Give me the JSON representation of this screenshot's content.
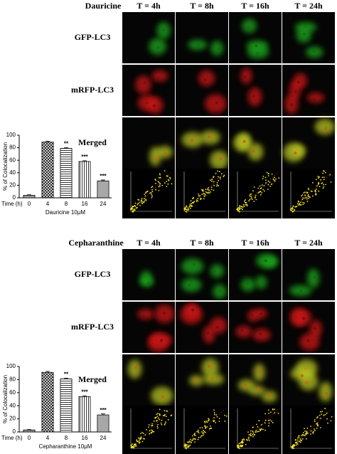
{
  "panels": [
    {
      "compound": "Dauricine",
      "columns": [
        "T = 4h",
        "T = 8h",
        "T = 16h",
        "T = 24h"
      ],
      "rows": [
        "GFP-LC3",
        "mRFP-LC3",
        "Merged"
      ]
    },
    {
      "compound": "Cepharanthine",
      "columns": [
        "T = 4h",
        "T = 8h",
        "T = 16h",
        "T = 24h"
      ],
      "rows": [
        "GFP-LC3",
        "mRFP-LC3",
        "Merged"
      ]
    }
  ],
  "chart_data": [
    {
      "type": "bar",
      "ylabel": "% of Colocalization",
      "xprefix": "Time (h)",
      "xlabel": "Dauricine 10μM",
      "categories": [
        "0",
        "4",
        "8",
        "16",
        "24"
      ],
      "values": [
        4,
        89,
        79,
        58,
        27
      ],
      "errors": [
        0.8,
        1.5,
        1,
        1.2,
        1.5
      ],
      "annotations": [
        null,
        null,
        "**",
        "***",
        "***"
      ],
      "patterns": [
        "solid",
        "crosshatch",
        "hlines",
        "vlines",
        "dots"
      ],
      "ylim": [
        0,
        100
      ],
      "yticks": [
        0,
        20,
        40,
        60,
        80,
        100
      ]
    },
    {
      "type": "bar",
      "ylabel": "% of Colocalization",
      "xprefix": "Time (h)",
      "xlabel": "Cepharanthine 10μM",
      "categories": [
        "0",
        "4",
        "8",
        "16",
        "24"
      ],
      "values": [
        3,
        91,
        81,
        54,
        26
      ],
      "errors": [
        0.6,
        1.5,
        1.2,
        1.2,
        1.5
      ],
      "annotations": [
        null,
        null,
        "**",
        "***",
        "***"
      ],
      "patterns": [
        "solid",
        "crosshatch",
        "hlines",
        "vlines",
        "dots"
      ],
      "ylim": [
        0,
        100
      ],
      "yticks": [
        0,
        20,
        40,
        60,
        80,
        100
      ]
    }
  ]
}
